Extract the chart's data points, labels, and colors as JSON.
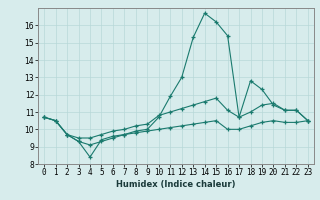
{
  "xlabel": "Humidex (Indice chaleur)",
  "x_values": [
    0,
    1,
    2,
    3,
    4,
    5,
    6,
    7,
    8,
    9,
    10,
    11,
    12,
    13,
    14,
    15,
    16,
    17,
    18,
    19,
    20,
    21,
    22,
    23
  ],
  "line1": [
    10.7,
    10.5,
    9.7,
    9.3,
    8.4,
    9.4,
    9.6,
    9.7,
    9.9,
    10.0,
    10.7,
    11.9,
    13.0,
    15.3,
    16.7,
    16.2,
    15.4,
    10.7,
    12.8,
    12.3,
    11.4,
    11.1,
    11.1,
    10.5
  ],
  "line2": [
    10.7,
    10.5,
    9.7,
    9.5,
    9.5,
    9.7,
    9.9,
    10.0,
    10.2,
    10.3,
    10.8,
    11.0,
    11.2,
    11.4,
    11.6,
    11.8,
    11.1,
    10.7,
    11.0,
    11.4,
    11.5,
    11.1,
    11.1,
    10.5
  ],
  "line3": [
    10.7,
    10.5,
    9.7,
    9.3,
    9.1,
    9.3,
    9.5,
    9.7,
    9.8,
    9.9,
    10.0,
    10.1,
    10.2,
    10.3,
    10.4,
    10.5,
    10.0,
    10.0,
    10.2,
    10.4,
    10.5,
    10.4,
    10.4,
    10.5
  ],
  "line_color": "#1a7a6e",
  "bg_color": "#d7ecec",
  "grid_color": "#b8d8d8",
  "ylim": [
    8,
    17
  ],
  "yticks": [
    8,
    9,
    10,
    11,
    12,
    13,
    14,
    15,
    16
  ],
  "xticks": [
    0,
    1,
    2,
    3,
    4,
    5,
    6,
    7,
    8,
    9,
    10,
    11,
    12,
    13,
    14,
    15,
    16,
    17,
    18,
    19,
    20,
    21,
    22,
    23
  ],
  "xlabel_fontsize": 6.0,
  "ylabel_fontsize": 5.5,
  "tick_fontsize": 5.5
}
